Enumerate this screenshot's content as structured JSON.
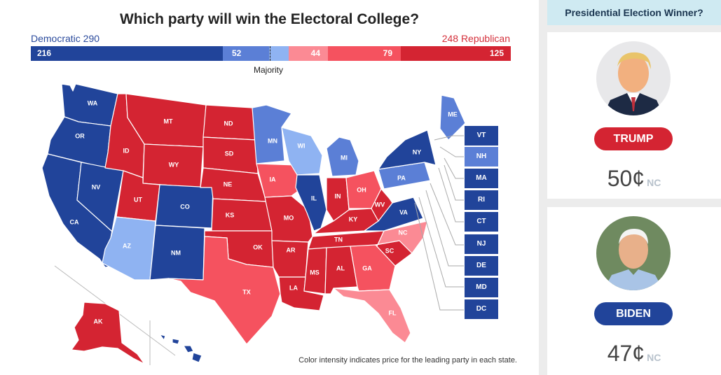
{
  "title": "Which party will win the Electoral College?",
  "totals": {
    "dem_label": "Democratic 290",
    "rep_label": "248 Republican"
  },
  "bar": [
    {
      "label": "216",
      "value": 216,
      "color": "#21449a"
    },
    {
      "label": "52",
      "value": 52,
      "color": "#5b7fd6"
    },
    {
      "label": "",
      "value": 22,
      "color": "#8fb3f2"
    },
    {
      "label": "44",
      "value": 44,
      "color": "#fb8a94"
    },
    {
      "label": "79",
      "value": 79,
      "color": "#f5525f"
    },
    {
      "label": "125",
      "value": 125,
      "color": "#d42432"
    }
  ],
  "majority_label": "Majority",
  "colors": {
    "dem_strong": "#21449a",
    "dem_lean": "#5b7fd6",
    "dem_tilt": "#8fb3f2",
    "rep_strong": "#d42432",
    "rep_lean": "#f5525f",
    "rep_tilt": "#fb8a94"
  },
  "states": [
    {
      "abbr": "WA",
      "tier": "dem_strong"
    },
    {
      "abbr": "OR",
      "tier": "dem_strong"
    },
    {
      "abbr": "CA",
      "tier": "dem_strong"
    },
    {
      "abbr": "NV",
      "tier": "dem_strong"
    },
    {
      "abbr": "ID",
      "tier": "rep_strong"
    },
    {
      "abbr": "MT",
      "tier": "rep_strong"
    },
    {
      "abbr": "WY",
      "tier": "rep_strong"
    },
    {
      "abbr": "UT",
      "tier": "rep_strong"
    },
    {
      "abbr": "AZ",
      "tier": "dem_tilt"
    },
    {
      "abbr": "CO",
      "tier": "dem_strong"
    },
    {
      "abbr": "NM",
      "tier": "dem_strong"
    },
    {
      "abbr": "ND",
      "tier": "rep_strong"
    },
    {
      "abbr": "SD",
      "tier": "rep_strong"
    },
    {
      "abbr": "NE",
      "tier": "rep_strong"
    },
    {
      "abbr": "KS",
      "tier": "rep_strong"
    },
    {
      "abbr": "OK",
      "tier": "rep_strong"
    },
    {
      "abbr": "TX",
      "tier": "rep_lean"
    },
    {
      "abbr": "MN",
      "tier": "dem_lean"
    },
    {
      "abbr": "IA",
      "tier": "rep_lean"
    },
    {
      "abbr": "MO",
      "tier": "rep_strong"
    },
    {
      "abbr": "AR",
      "tier": "rep_strong"
    },
    {
      "abbr": "LA",
      "tier": "rep_strong"
    },
    {
      "abbr": "WI",
      "tier": "dem_tilt"
    },
    {
      "abbr": "IL",
      "tier": "dem_strong"
    },
    {
      "abbr": "MI",
      "tier": "dem_lean"
    },
    {
      "abbr": "IN",
      "tier": "rep_strong"
    },
    {
      "abbr": "OH",
      "tier": "rep_lean"
    },
    {
      "abbr": "KY",
      "tier": "rep_strong"
    },
    {
      "abbr": "TN",
      "tier": "rep_strong"
    },
    {
      "abbr": "MS",
      "tier": "rep_strong"
    },
    {
      "abbr": "AL",
      "tier": "rep_strong"
    },
    {
      "abbr": "GA",
      "tier": "rep_lean"
    },
    {
      "abbr": "FL",
      "tier": "rep_tilt"
    },
    {
      "abbr": "SC",
      "tier": "rep_strong"
    },
    {
      "abbr": "NC",
      "tier": "rep_tilt"
    },
    {
      "abbr": "VA",
      "tier": "dem_strong"
    },
    {
      "abbr": "WV",
      "tier": "rep_strong"
    },
    {
      "abbr": "PA",
      "tier": "dem_lean"
    },
    {
      "abbr": "NY",
      "tier": "dem_strong"
    },
    {
      "abbr": "ME",
      "tier": "dem_lean"
    },
    {
      "abbr": "AK",
      "tier": "rep_strong"
    },
    {
      "abbr": "HI",
      "tier": "dem_strong"
    }
  ],
  "small_states": [
    {
      "abbr": "VT",
      "tier": "dem_strong"
    },
    {
      "abbr": "NH",
      "tier": "dem_lean"
    },
    {
      "abbr": "MA",
      "tier": "dem_strong"
    },
    {
      "abbr": "RI",
      "tier": "dem_strong"
    },
    {
      "abbr": "CT",
      "tier": "dem_strong"
    },
    {
      "abbr": "NJ",
      "tier": "dem_strong"
    },
    {
      "abbr": "DE",
      "tier": "dem_strong"
    },
    {
      "abbr": "MD",
      "tier": "dem_strong"
    },
    {
      "abbr": "DC",
      "tier": "dem_strong"
    }
  ],
  "footnote": "Color intensity indicates price for the leading party in each state.",
  "sidebar": {
    "header": "Presidential Election Winner?",
    "candidates": [
      {
        "name": "TRUMP",
        "price": "50¢",
        "change": "NC",
        "color": "#d42432"
      },
      {
        "name": "BIDEN",
        "price": "47¢",
        "change": "NC",
        "color": "#21449a"
      }
    ]
  }
}
